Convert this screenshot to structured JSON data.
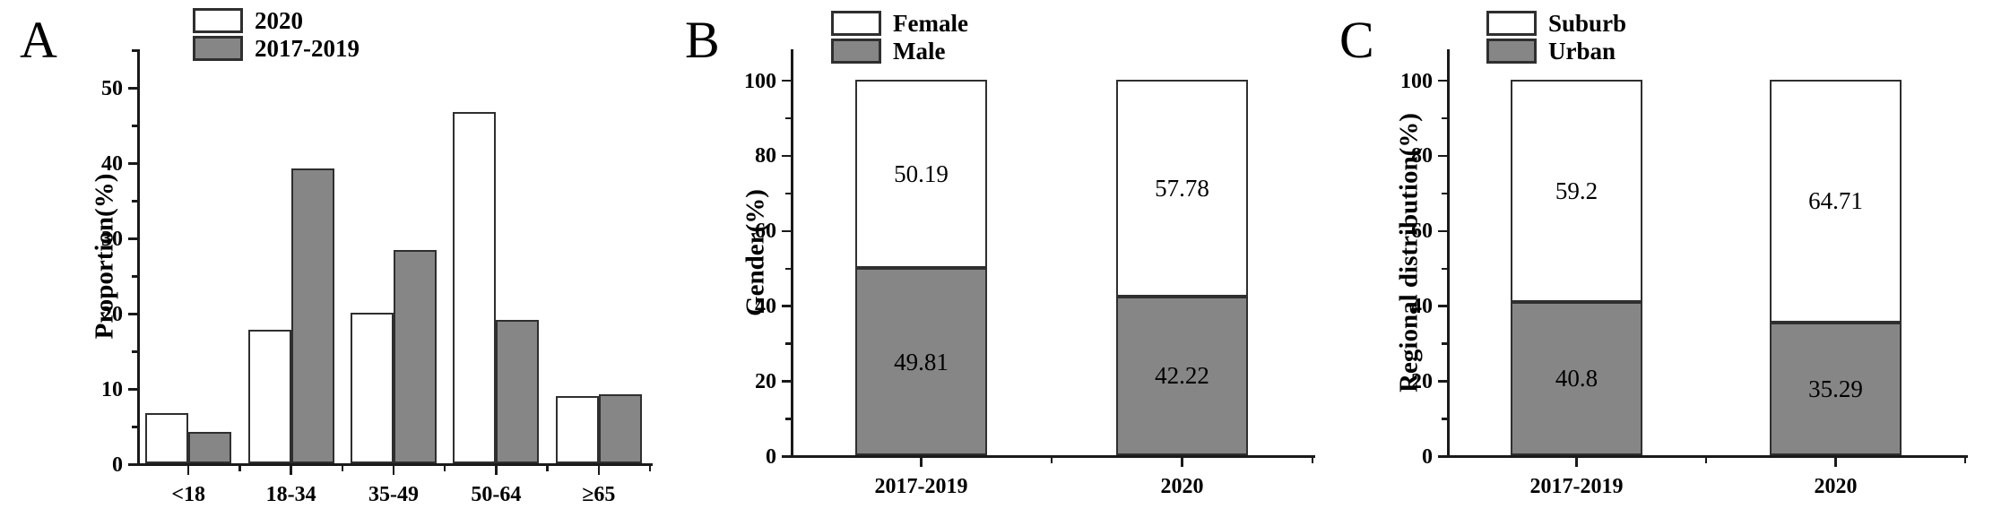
{
  "figure": {
    "background": "#ffffff"
  },
  "colors": {
    "light_fill": "#ffffff",
    "dark_fill": "#868686",
    "bar_border": "#2f2f2f",
    "axis": "#1a1a1a",
    "text": "#000000"
  },
  "chart_data": [
    {
      "type": "bar",
      "panel_label": "A",
      "ylabel": "Proportion(%)",
      "categories": [
        "<18",
        "18-34",
        "35-49",
        "50-64",
        "≥65"
      ],
      "series": [
        {
          "name": "2020",
          "fill": "light",
          "values": [
            6.7,
            17.7,
            20.0,
            46.7,
            8.9
          ]
        },
        {
          "name": "2017-2019",
          "fill": "dark",
          "values": [
            4.2,
            39.2,
            28.3,
            19.1,
            9.2
          ]
        }
      ],
      "legend": [
        {
          "label": "2020",
          "fill": "light"
        },
        {
          "label": "2017-2019",
          "fill": "dark"
        }
      ],
      "ylim": [
        0,
        55
      ],
      "yticks_major": [
        0,
        10,
        20,
        30,
        40,
        50
      ],
      "ytick_minor_step": 5,
      "grid": false,
      "legend_position": "top-left"
    },
    {
      "type": "stacked-bar",
      "panel_label": "B",
      "ylabel": "Gender(%)",
      "categories": [
        "2017-2019",
        "2020"
      ],
      "series": [
        {
          "name": "Male",
          "fill": "dark",
          "values": [
            49.81,
            42.22
          ],
          "value_labels": [
            "49.81",
            "42.22"
          ]
        },
        {
          "name": "Female",
          "fill": "light",
          "values": [
            50.19,
            57.78
          ],
          "value_labels": [
            "50.19",
            "57.78"
          ]
        }
      ],
      "legend": [
        {
          "label": "Female",
          "fill": "light"
        },
        {
          "label": "Male",
          "fill": "dark"
        }
      ],
      "ylim": [
        0,
        108
      ],
      "yticks_major": [
        0,
        20,
        40,
        60,
        80,
        100
      ],
      "ytick_minor_step": 10,
      "grid": false,
      "legend_position": "top-left"
    },
    {
      "type": "stacked-bar",
      "panel_label": "C",
      "ylabel": "Regional distribution(%)",
      "categories": [
        "2017-2019",
        "2020"
      ],
      "series": [
        {
          "name": "Urban",
          "fill": "dark",
          "values": [
            40.8,
            35.29
          ],
          "value_labels": [
            "40.8",
            "35.29"
          ]
        },
        {
          "name": "Suburb",
          "fill": "light",
          "values": [
            59.2,
            64.71
          ],
          "value_labels": [
            "59.2",
            "64.71"
          ]
        }
      ],
      "legend": [
        {
          "label": "Suburb",
          "fill": "light"
        },
        {
          "label": "Urban",
          "fill": "dark"
        }
      ],
      "ylim": [
        0,
        108
      ],
      "yticks_major": [
        0,
        20,
        40,
        60,
        80,
        100
      ],
      "ytick_minor_step": 10,
      "grid": false,
      "legend_position": "top-left"
    }
  ]
}
